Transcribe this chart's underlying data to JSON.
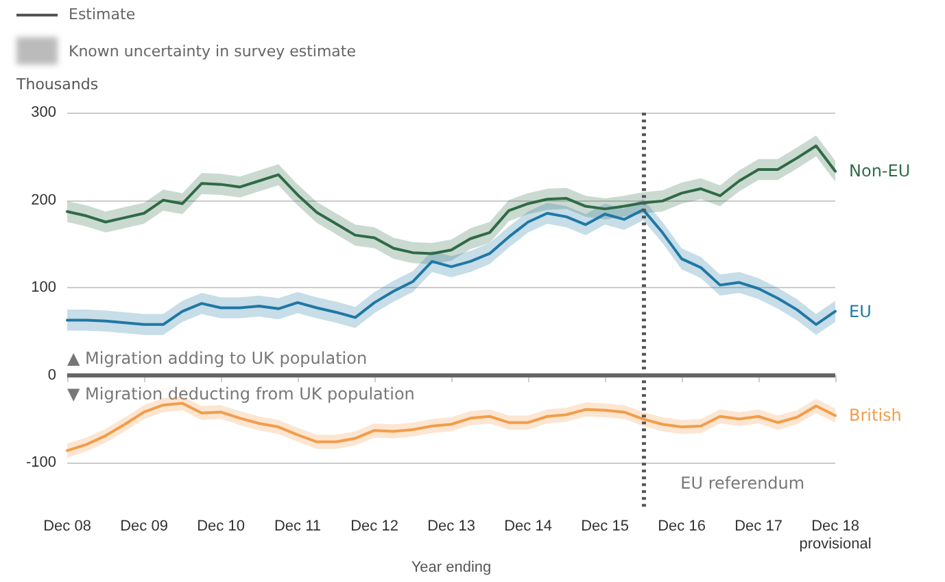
{
  "chart_data": {
    "type": "line",
    "ylabel": "Thousands",
    "xlabel": "Year ending",
    "x": [
      "2008-12",
      "2009-03",
      "2009-06",
      "2009-09",
      "2009-12",
      "2010-03",
      "2010-06",
      "2010-09",
      "2010-12",
      "2011-03",
      "2011-06",
      "2011-09",
      "2011-12",
      "2012-03",
      "2012-06",
      "2012-09",
      "2012-12",
      "2013-03",
      "2013-06",
      "2013-09",
      "2013-12",
      "2014-03",
      "2014-06",
      "2014-09",
      "2014-12",
      "2015-03",
      "2015-06",
      "2015-09",
      "2015-12",
      "2016-03",
      "2016-06",
      "2016-09",
      "2016-12",
      "2017-03",
      "2017-06",
      "2017-09",
      "2017-12",
      "2018-03",
      "2018-06",
      "2018-09",
      "2018-12"
    ],
    "series": [
      {
        "name": "Non-EU",
        "color": "#2f6b46",
        "values": [
          187,
          182,
          175,
          180,
          185,
          200,
          196,
          219,
          218,
          215,
          222,
          229,
          206,
          186,
          173,
          160,
          157,
          145,
          140,
          139,
          143,
          156,
          163,
          188,
          196,
          201,
          202,
          193,
          190,
          193,
          197,
          199,
          208,
          213,
          205,
          222,
          235,
          235,
          248,
          262,
          233
        ],
        "lower": [
          175,
          170,
          163,
          168,
          173,
          188,
          184,
          207,
          206,
          203,
          210,
          217,
          194,
          174,
          161,
          148,
          145,
          133,
          128,
          127,
          131,
          144,
          151,
          176,
          184,
          189,
          190,
          181,
          178,
          181,
          185,
          187,
          196,
          201,
          193,
          210,
          223,
          223,
          236,
          250,
          221
        ],
        "upper": [
          199,
          194,
          187,
          192,
          197,
          212,
          208,
          231,
          230,
          227,
          234,
          241,
          218,
          198,
          185,
          172,
          169,
          157,
          152,
          151,
          155,
          168,
          175,
          200,
          208,
          213,
          214,
          205,
          202,
          205,
          209,
          211,
          220,
          225,
          217,
          234,
          247,
          247,
          260,
          274,
          245
        ]
      },
      {
        "name": "EU",
        "color": "#1f78a4",
        "values": [
          63,
          63,
          62,
          60,
          58,
          58,
          73,
          82,
          77,
          77,
          79,
          76,
          83,
          77,
          72,
          66,
          83,
          96,
          107,
          130,
          124,
          130,
          139,
          158,
          175,
          185,
          181,
          172,
          184,
          178,
          189,
          163,
          133,
          123,
          103,
          106,
          99,
          88,
          75,
          58,
          73
        ],
        "lower": [
          51,
          51,
          50,
          48,
          46,
          46,
          61,
          70,
          65,
          65,
          67,
          64,
          71,
          65,
          60,
          54,
          71,
          84,
          95,
          118,
          112,
          118,
          127,
          146,
          163,
          173,
          169,
          160,
          172,
          166,
          177,
          151,
          121,
          111,
          91,
          94,
          87,
          76,
          63,
          46,
          61
        ],
        "upper": [
          75,
          75,
          74,
          72,
          70,
          70,
          85,
          94,
          89,
          89,
          91,
          88,
          95,
          89,
          84,
          78,
          95,
          108,
          119,
          142,
          136,
          142,
          151,
          170,
          187,
          197,
          193,
          184,
          196,
          190,
          201,
          175,
          145,
          135,
          115,
          118,
          111,
          100,
          87,
          70,
          85
        ]
      },
      {
        "name": "British",
        "color": "#f29d4b",
        "values": [
          -86,
          -79,
          -69,
          -56,
          -42,
          -34,
          -32,
          -43,
          -42,
          -49,
          -55,
          -59,
          -68,
          -76,
          -76,
          -72,
          -63,
          -64,
          -62,
          -58,
          -56,
          -49,
          -47,
          -54,
          -54,
          -47,
          -45,
          -39,
          -40,
          -42,
          -50,
          -56,
          -59,
          -58,
          -47,
          -50,
          -47,
          -54,
          -48,
          -35,
          -46
        ],
        "lower": [
          -94,
          -87,
          -77,
          -64,
          -50,
          -42,
          -40,
          -51,
          -50,
          -57,
          -63,
          -67,
          -76,
          -84,
          -84,
          -80,
          -71,
          -72,
          -70,
          -66,
          -64,
          -57,
          -55,
          -62,
          -62,
          -55,
          -53,
          -47,
          -48,
          -50,
          -58,
          -64,
          -67,
          -66,
          -55,
          -58,
          -55,
          -62,
          -56,
          -43,
          -54
        ],
        "upper": [
          -78,
          -71,
          -61,
          -48,
          -34,
          -26,
          -24,
          -35,
          -34,
          -41,
          -47,
          -51,
          -60,
          -68,
          -68,
          -64,
          -55,
          -56,
          -54,
          -50,
          -48,
          -41,
          -39,
          -46,
          -46,
          -39,
          -37,
          -31,
          -32,
          -34,
          -42,
          -48,
          -51,
          -50,
          -39,
          -42,
          -39,
          -46,
          -40,
          -27,
          -38
        ]
      }
    ],
    "xlim": [
      "2008-12",
      "2018-12"
    ],
    "xticks": [
      {
        "value": "2008-12",
        "label": "Dec 08"
      },
      {
        "value": "2009-12",
        "label": "Dec 09"
      },
      {
        "value": "2010-12",
        "label": "Dec 10"
      },
      {
        "value": "2011-12",
        "label": "Dec 11"
      },
      {
        "value": "2012-12",
        "label": "Dec 12"
      },
      {
        "value": "2013-12",
        "label": "Dec 13"
      },
      {
        "value": "2014-12",
        "label": "Dec 14"
      },
      {
        "value": "2015-12",
        "label": "Dec 15"
      },
      {
        "value": "2016-12",
        "label": "Dec 16"
      },
      {
        "value": "2017-12",
        "label": "Dec 17"
      },
      {
        "value": "2018-12",
        "label": "Dec 18\nprovisional"
      }
    ],
    "ylim": [
      -150,
      300
    ],
    "yticks": [
      -100,
      0,
      100,
      200,
      300
    ],
    "grid": "y",
    "marker": "none",
    "line_style": "solid",
    "ref_lines": [
      {
        "axis": "x",
        "value": "2016-06",
        "label": "EU referendum",
        "color": "#555555",
        "line_style": "dotted"
      },
      {
        "axis": "y",
        "value": 0,
        "color": "#666666",
        "line_style": "solid"
      }
    ],
    "annotations": [
      "Estimate",
      "Known uncertainty in survey estimate",
      "▲ Migration adding to UK population",
      "▼ Migration deducting from UK population"
    ]
  }
}
